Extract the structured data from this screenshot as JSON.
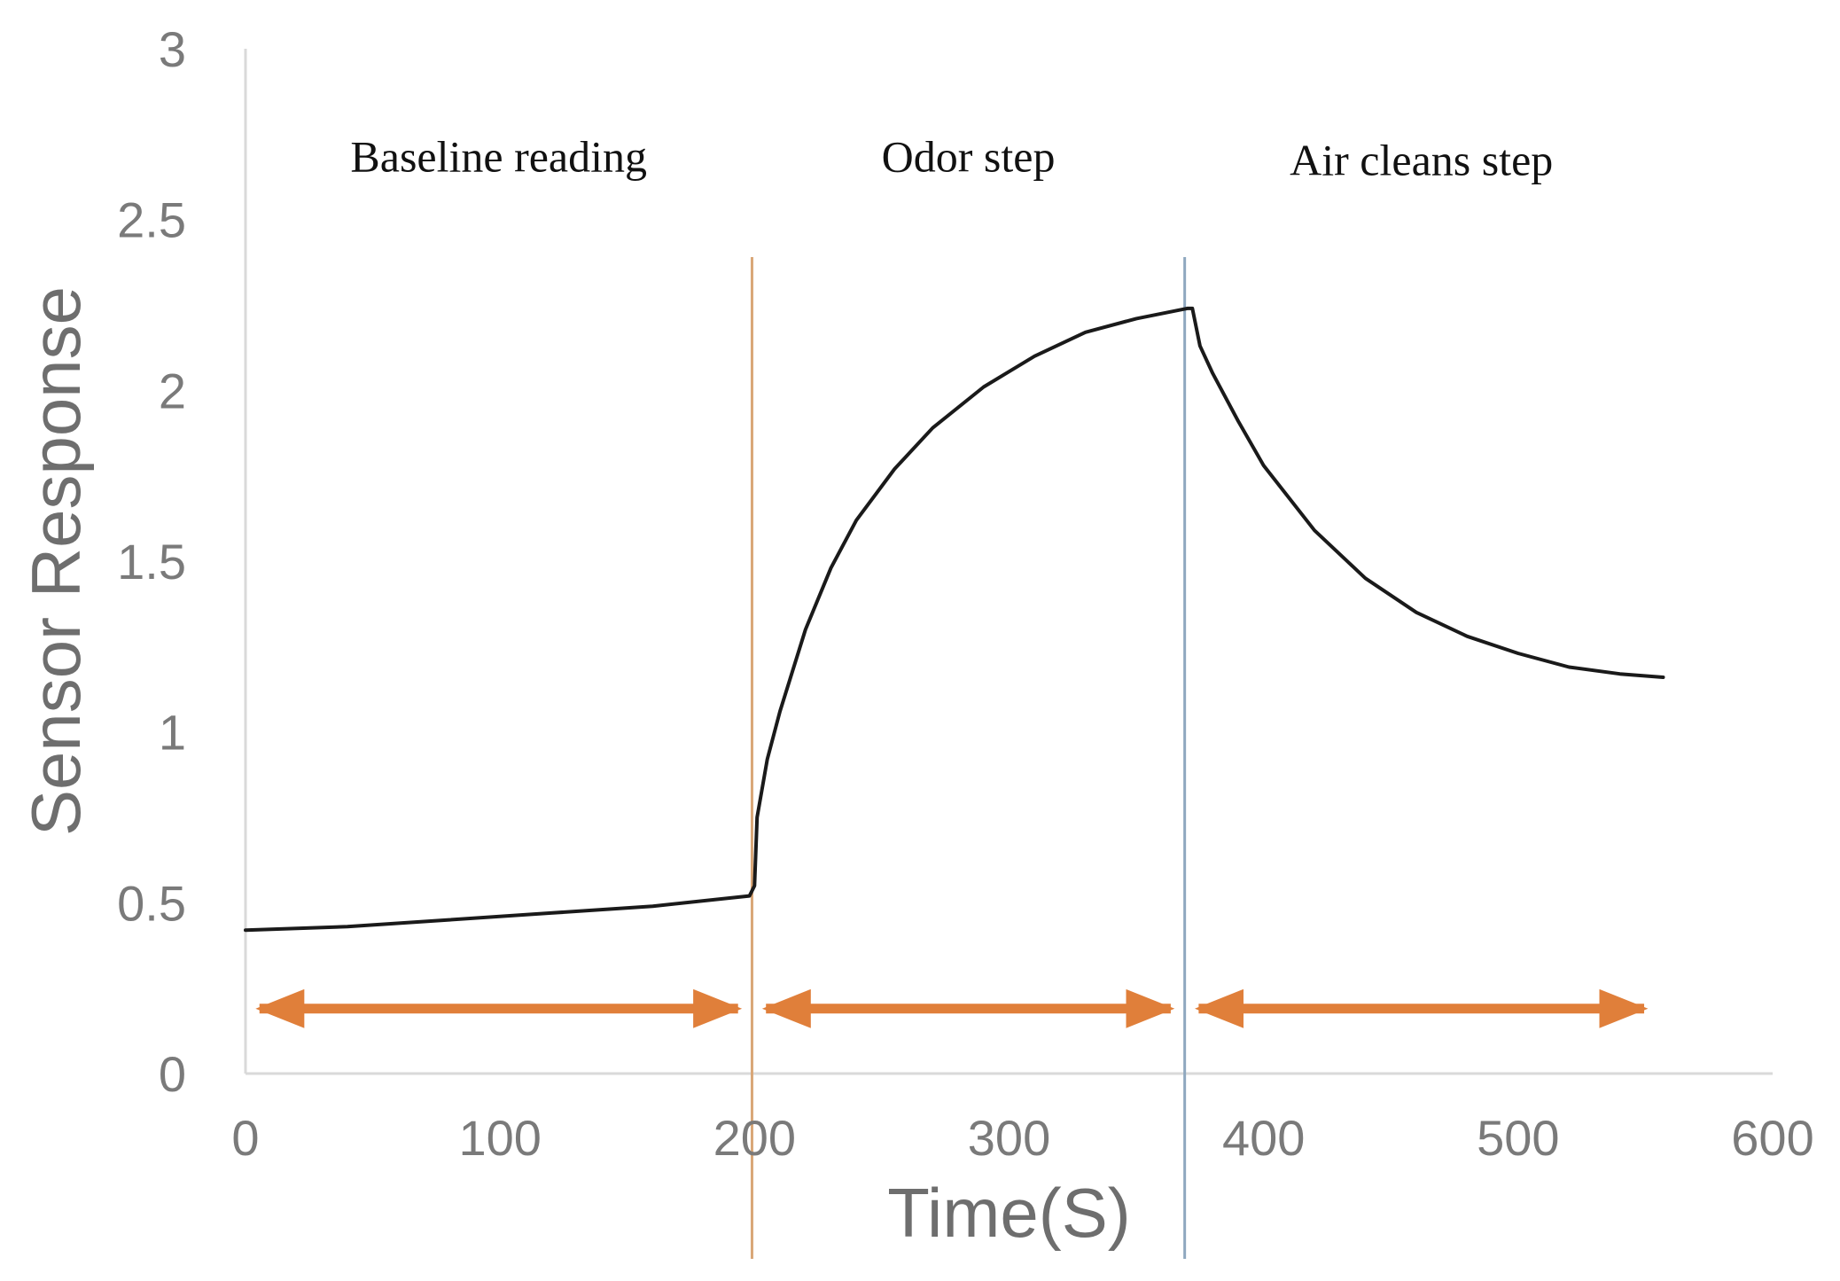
{
  "chart_data": {
    "type": "line",
    "xlabel": "Time(S)",
    "ylabel": "Sensor Response",
    "xlim": [
      0,
      600
    ],
    "ylim": [
      0,
      3
    ],
    "xticks": [
      "0",
      "100",
      "200",
      "300",
      "400",
      "500",
      "600"
    ],
    "yticks": [
      "0",
      "0.5",
      "1",
      "1.5",
      "2",
      "2.5",
      "3"
    ],
    "grid": false,
    "series": [
      {
        "x": [
          0,
          40,
          80,
          120,
          160,
          198,
          200,
          201,
          205,
          210,
          220,
          230,
          240,
          255,
          270,
          290,
          310,
          330,
          350,
          370,
          372,
          375,
          380,
          390,
          400,
          420,
          440,
          460,
          480,
          500,
          520,
          540,
          557
        ],
        "y": [
          0.42,
          0.43,
          0.45,
          0.47,
          0.49,
          0.52,
          0.55,
          0.75,
          0.92,
          1.06,
          1.3,
          1.48,
          1.62,
          1.77,
          1.89,
          2.01,
          2.1,
          2.17,
          2.21,
          2.24,
          2.24,
          2.13,
          2.05,
          1.91,
          1.78,
          1.59,
          1.45,
          1.35,
          1.28,
          1.23,
          1.19,
          1.17,
          1.16
        ]
      }
    ],
    "phase_boundaries": [
      {
        "x": 199,
        "color": "#d9a677"
      },
      {
        "x": 369,
        "color": "#8fa8bf"
      }
    ],
    "phases": [
      {
        "label": "Baseline reading",
        "x_start": 2,
        "x_end": 197,
        "label_y": 2.64
      },
      {
        "label": "Odor step",
        "x_start": 201,
        "x_end": 367,
        "label_y": 2.64
      },
      {
        "label": "Air cleans step",
        "x_start": 371,
        "x_end": 553,
        "label_y": 2.63
      }
    ],
    "arrow_level": 0.19,
    "arrow_color": "#e07f3a",
    "line_color": "#1a1a1a",
    "axis_color": "#d9d9d9"
  }
}
